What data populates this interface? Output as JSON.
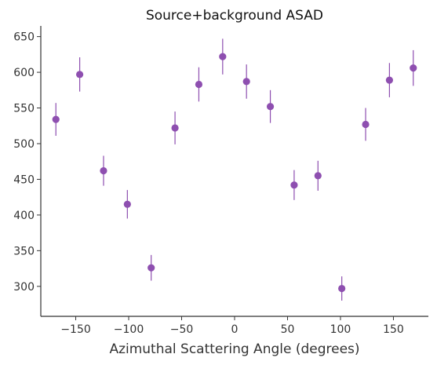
{
  "chart_data": {
    "type": "scatter",
    "title": "Source+background ASAD",
    "xlabel": "Azimuthal Scattering Angle (degrees)",
    "ylabel": "",
    "xlim": [
      -183,
      183
    ],
    "ylim": [
      258,
      665
    ],
    "xticks": [
      -150,
      -100,
      -50,
      0,
      50,
      100,
      150
    ],
    "yticks": [
      300,
      350,
      400,
      450,
      500,
      550,
      600,
      650
    ],
    "xtick_labels": [
      "−150",
      "−100",
      "−50",
      "0",
      "50",
      "100",
      "150"
    ],
    "ytick_labels": [
      "300",
      "350",
      "400",
      "450",
      "500",
      "550",
      "600",
      "650"
    ],
    "grid": false,
    "color": "#8e4fb0",
    "points": [
      {
        "x": -168.75,
        "y": 534,
        "yerr": 23
      },
      {
        "x": -146.25,
        "y": 597,
        "yerr": 24
      },
      {
        "x": -123.75,
        "y": 462,
        "yerr": 21
      },
      {
        "x": -101.25,
        "y": 415,
        "yerr": 20
      },
      {
        "x": -78.75,
        "y": 326,
        "yerr": 18
      },
      {
        "x": -56.25,
        "y": 522,
        "yerr": 23
      },
      {
        "x": -33.75,
        "y": 583,
        "yerr": 24
      },
      {
        "x": -11.25,
        "y": 622,
        "yerr": 25
      },
      {
        "x": 11.25,
        "y": 587,
        "yerr": 24
      },
      {
        "x": 33.75,
        "y": 552,
        "yerr": 23
      },
      {
        "x": 56.25,
        "y": 442,
        "yerr": 21
      },
      {
        "x": 78.75,
        "y": 455,
        "yerr": 21
      },
      {
        "x": 101.25,
        "y": 297,
        "yerr": 17
      },
      {
        "x": 123.75,
        "y": 527,
        "yerr": 23
      },
      {
        "x": 146.25,
        "y": 589,
        "yerr": 24
      },
      {
        "x": 168.75,
        "y": 606,
        "yerr": 25
      }
    ]
  }
}
